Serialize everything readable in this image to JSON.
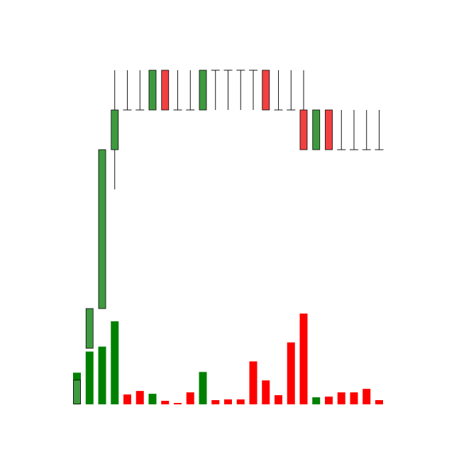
{
  "chart_data": {
    "type": "candlestick",
    "title": "",
    "xlabel": "",
    "ylabel": "",
    "grid": false,
    "legend": false,
    "axes_visible": false,
    "price_range": [
      0,
      8.4
    ],
    "colors": {
      "up": "#3f9a3f",
      "down": "#f24040",
      "volume_up": "#008000",
      "volume_down": "#ff0000",
      "outline": "#000000"
    },
    "candles": [
      {
        "open": 0,
        "high": 0.6,
        "low": 0,
        "close": 0.6
      },
      {
        "open": 1.4,
        "high": 2.4,
        "low": 1.4,
        "close": 2.4
      },
      {
        "open": 2.4,
        "high": 6.4,
        "low": 2.4,
        "close": 6.4
      },
      {
        "open": 6.4,
        "high": 8.4,
        "low": 5.4,
        "close": 7.4
      },
      {
        "open": 7.4,
        "high": 8.4,
        "low": 7.4,
        "close": 7.4
      },
      {
        "open": 7.4,
        "high": 8.4,
        "low": 7.4,
        "close": 7.4
      },
      {
        "open": 7.4,
        "high": 8.4,
        "low": 7.4,
        "close": 8.4
      },
      {
        "open": 8.4,
        "high": 8.4,
        "low": 7.4,
        "close": 7.4
      },
      {
        "open": 7.4,
        "high": 8.4,
        "low": 7.4,
        "close": 7.4
      },
      {
        "open": 7.4,
        "high": 8.4,
        "low": 7.4,
        "close": 7.4
      },
      {
        "open": 7.4,
        "high": 8.4,
        "low": 7.4,
        "close": 8.4
      },
      {
        "open": 8.4,
        "high": 8.4,
        "low": 7.4,
        "close": 8.4
      },
      {
        "open": 8.4,
        "high": 8.4,
        "low": 7.4,
        "close": 8.4
      },
      {
        "open": 8.4,
        "high": 8.4,
        "low": 7.4,
        "close": 8.4
      },
      {
        "open": 8.4,
        "high": 8.4,
        "low": 7.4,
        "close": 8.4
      },
      {
        "open": 8.4,
        "high": 8.4,
        "low": 7.4,
        "close": 7.4
      },
      {
        "open": 7.4,
        "high": 8.4,
        "low": 7.4,
        "close": 7.4
      },
      {
        "open": 7.4,
        "high": 8.4,
        "low": 7.4,
        "close": 7.4
      },
      {
        "open": 7.4,
        "high": 8.4,
        "low": 6.4,
        "close": 6.4
      },
      {
        "open": 6.4,
        "high": 7.4,
        "low": 6.4,
        "close": 7.4
      },
      {
        "open": 7.4,
        "high": 7.4,
        "low": 6.4,
        "close": 6.4
      },
      {
        "open": 6.4,
        "high": 7.4,
        "low": 6.4,
        "close": 6.4
      },
      {
        "open": 6.4,
        "high": 7.4,
        "low": 6.4,
        "close": 6.4
      },
      {
        "open": 6.4,
        "high": 7.4,
        "low": 6.4,
        "close": 6.4
      },
      {
        "open": 6.4,
        "high": 7.4,
        "low": 6.4,
        "close": 6.4
      }
    ],
    "volume": {
      "ylim": [
        0,
        130
      ],
      "values": [
        45,
        75,
        82,
        118,
        14,
        19,
        15,
        5,
        2,
        17,
        46,
        6,
        7,
        7,
        61,
        34,
        13,
        88,
        129,
        10,
        11,
        17,
        17,
        22,
        6
      ],
      "colors": [
        "#008000",
        "#008000",
        "#008000",
        "#008000",
        "#ff0000",
        "#ff0000",
        "#008000",
        "#ff0000",
        "#ff0000",
        "#ff0000",
        "#008000",
        "#ff0000",
        "#ff0000",
        "#ff0000",
        "#ff0000",
        "#ff0000",
        "#ff0000",
        "#ff0000",
        "#ff0000",
        "#008000",
        "#ff0000",
        "#ff0000",
        "#ff0000",
        "#ff0000",
        "#ff0000"
      ]
    }
  }
}
